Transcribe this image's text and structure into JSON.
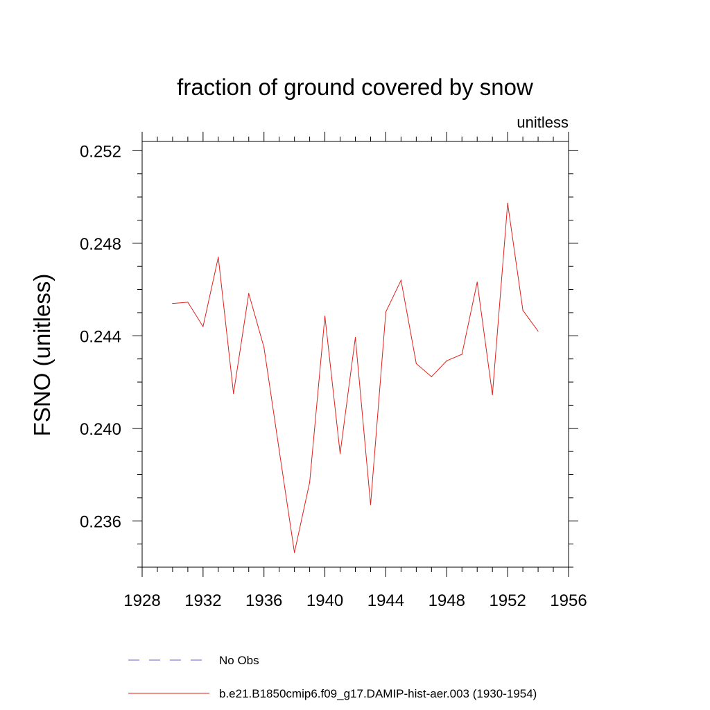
{
  "chart_data": {
    "type": "line",
    "title": "fraction of ground covered by snow",
    "units_label": "unitless",
    "xlabel": "",
    "ylabel": "FSNO  (unitless)",
    "xlim": [
      1928,
      1956
    ],
    "ylim": [
      0.234,
      0.2524
    ],
    "x_ticks": [
      1928,
      1932,
      1936,
      1940,
      1944,
      1948,
      1952,
      1956
    ],
    "y_ticks": [
      0.236,
      0.24,
      0.244,
      0.248,
      0.252
    ],
    "x_tick_labels": [
      "1928",
      "1932",
      "1936",
      "1940",
      "1944",
      "1948",
      "1952",
      "1956"
    ],
    "y_tick_labels": [
      "0.236",
      "0.240",
      "0.244",
      "0.248",
      "0.252"
    ],
    "grid": false,
    "legend_position": "bottom",
    "legend": [
      {
        "label": "No Obs",
        "style": "dashed",
        "color": "#6a5acd"
      },
      {
        "label": "b.e21.B1850cmip6.f09_g17.DAMIP-hist-aer.003 (1930-1954)",
        "style": "solid",
        "color": "#e0201b"
      }
    ],
    "series": [
      {
        "name": "b.e21.B1850cmip6.f09_g17.DAMIP-hist-aer.003 (1930-1954)",
        "color": "#e0201b",
        "x": [
          1930,
          1931,
          1932,
          1933,
          1934,
          1935,
          1936,
          1937,
          1938,
          1939,
          1940,
          1941,
          1942,
          1943,
          1944,
          1945,
          1946,
          1947,
          1948,
          1949,
          1950,
          1951,
          1952,
          1953,
          1954
        ],
        "values": [
          0.2454,
          0.24545,
          0.2444,
          0.2474,
          0.2415,
          0.24583,
          0.2435,
          0.23905,
          0.23463,
          0.23767,
          0.24485,
          0.23891,
          0.24393,
          0.2367,
          0.24503,
          0.2464,
          0.2428,
          0.24223,
          0.24292,
          0.2432,
          0.24632,
          0.24145,
          0.24973,
          0.2451,
          0.2442
        ]
      }
    ]
  }
}
